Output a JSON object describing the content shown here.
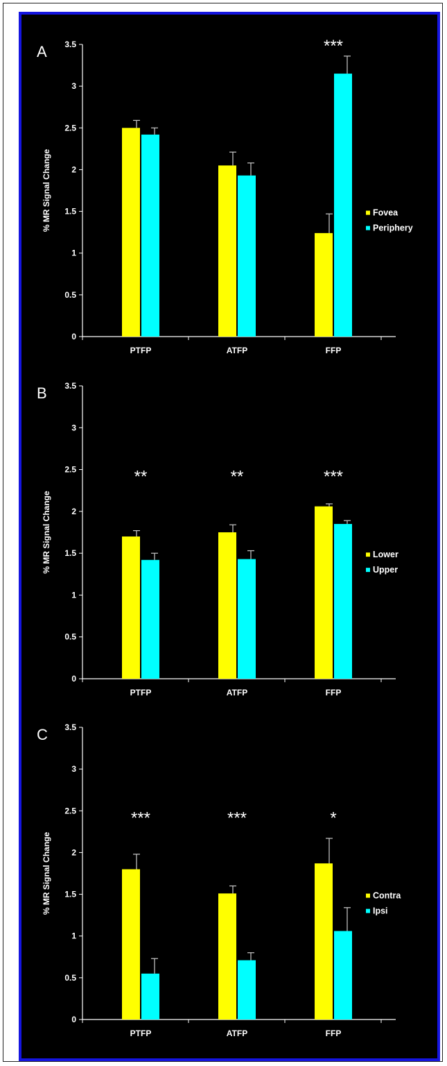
{
  "colors": {
    "background": "#000000",
    "frame": "#1515e0",
    "axis": "#ffffff"
  },
  "chart_data": [
    {
      "type": "bar",
      "panel": "A",
      "ylabel": "% MR Signal Change",
      "ylim": [
        0,
        3.5
      ],
      "yticks": [
        "0",
        "0.5",
        "1",
        "1.5",
        "2",
        "2.5",
        "3",
        "3.5"
      ],
      "categories": [
        "PTFP",
        "ATFP",
        "FFP"
      ],
      "legend_position": "right",
      "series": [
        {
          "name": "Fovea",
          "color": "#ffff00",
          "values": [
            2.5,
            2.05,
            1.24
          ],
          "errors": [
            0.09,
            0.16,
            0.23
          ]
        },
        {
          "name": "Periphery",
          "color": "#00ffff",
          "values": [
            2.42,
            1.93,
            3.15
          ],
          "errors": [
            0.08,
            0.15,
            0.21
          ]
        }
      ],
      "significance": [
        "",
        "",
        "***"
      ]
    },
    {
      "type": "bar",
      "panel": "B",
      "ylabel": "% MR Signal Change",
      "ylim": [
        0,
        3.5
      ],
      "yticks": [
        "0",
        "0.5",
        "1",
        "1.5",
        "2",
        "2.5",
        "3",
        "3.5"
      ],
      "categories": [
        "PTFP",
        "ATFP",
        "FFP"
      ],
      "legend_position": "right",
      "series": [
        {
          "name": "Lower",
          "color": "#ffff00",
          "values": [
            1.7,
            1.75,
            2.06
          ],
          "errors": [
            0.07,
            0.09,
            0.03
          ]
        },
        {
          "name": "Upper",
          "color": "#00ffff",
          "values": [
            1.42,
            1.43,
            1.85
          ],
          "errors": [
            0.08,
            0.1,
            0.04
          ]
        }
      ],
      "significance": [
        "**",
        "**",
        "***"
      ]
    },
    {
      "type": "bar",
      "panel": "C",
      "ylabel": "% MR Signal Change",
      "ylim": [
        0,
        3.5
      ],
      "yticks": [
        "0",
        "0.5",
        "1",
        "1.5",
        "2",
        "2.5",
        "3",
        "3.5"
      ],
      "categories": [
        "PTFP",
        "ATFP",
        "FFP"
      ],
      "legend_position": "right",
      "series": [
        {
          "name": "Contra",
          "color": "#ffff00",
          "values": [
            1.8,
            1.51,
            1.87
          ],
          "errors": [
            0.18,
            0.09,
            0.3
          ]
        },
        {
          "name": "Ipsi",
          "color": "#00ffff",
          "values": [
            0.55,
            0.71,
            1.06
          ],
          "errors": [
            0.18,
            0.09,
            0.28
          ]
        }
      ],
      "significance": [
        "***",
        "***",
        "*"
      ]
    }
  ]
}
